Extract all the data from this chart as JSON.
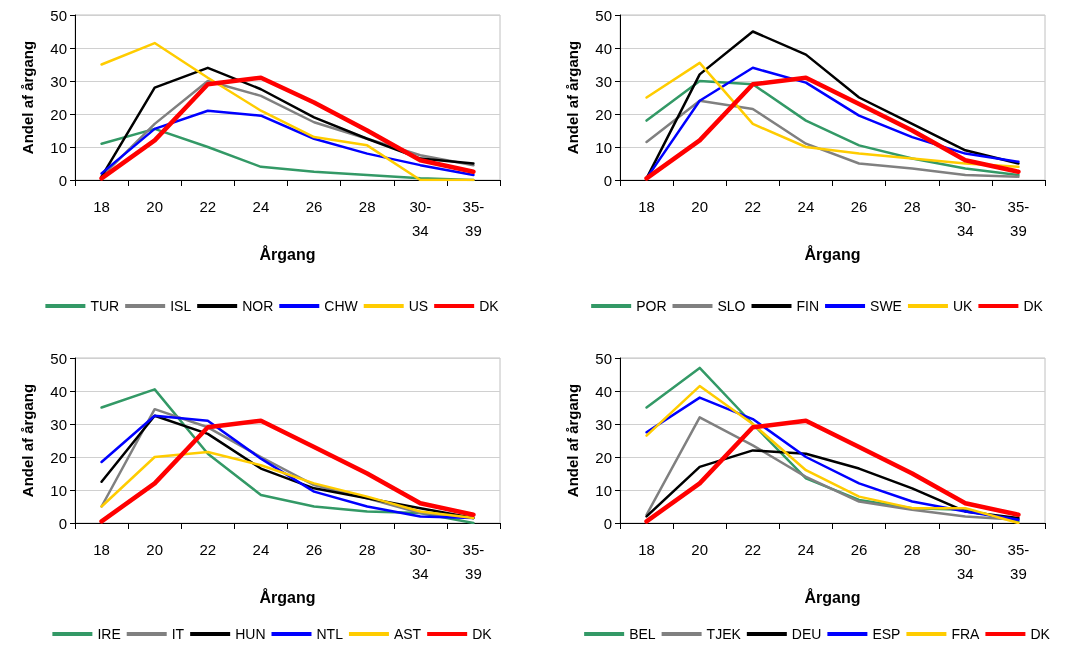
{
  "chart_data": [
    {
      "type": "line",
      "xlabel": "Årgang",
      "ylabel": "Andel af årgang",
      "categories": [
        "18",
        "20",
        "22",
        "24",
        "26",
        "28",
        "30-34",
        "35-39"
      ],
      "ylim": [
        0,
        50
      ],
      "yticks": [
        0,
        10,
        20,
        30,
        40,
        50
      ],
      "grid": "y",
      "legend": "bottom",
      "marker": "none",
      "line_style": "solid",
      "series": [
        {
          "name": "TUR",
          "color": "#339966",
          "values": [
            11,
            15.5,
            10,
            4,
            2.5,
            1.5,
            0.5,
            0
          ]
        },
        {
          "name": "ISL",
          "color": "#808080",
          "values": [
            1,
            17,
            30,
            25.5,
            17.5,
            12.5,
            7.5,
            4.5
          ]
        },
        {
          "name": "NOR",
          "color": "#000000",
          "values": [
            1,
            28,
            34,
            27.5,
            19,
            12.5,
            6.5,
            5
          ]
        },
        {
          "name": "CHW",
          "color": "#0000ff",
          "values": [
            2,
            15.5,
            21,
            19.5,
            12.5,
            8,
            4.5,
            1.5
          ]
        },
        {
          "name": "US",
          "color": "#ffcc00",
          "values": [
            35,
            41.5,
            31,
            21,
            13,
            10.5,
            0,
            0
          ]
        },
        {
          "name": "DK",
          "color": "#ff0000",
          "values": [
            0.5,
            12,
            29,
            31,
            23.5,
            15,
            6,
            2.5
          ]
        }
      ]
    },
    {
      "type": "line",
      "xlabel": "Årgang",
      "ylabel": "Andel af årgang",
      "categories": [
        "18",
        "20",
        "22",
        "24",
        "26",
        "28",
        "30-34",
        "35-39"
      ],
      "ylim": [
        0,
        50
      ],
      "yticks": [
        0,
        10,
        20,
        30,
        40,
        50
      ],
      "grid": "y",
      "legend": "bottom",
      "marker": "none",
      "line_style": "solid",
      "series": [
        {
          "name": "POR",
          "color": "#339966",
          "values": [
            18,
            30,
            29,
            18,
            10.5,
            6.5,
            3.5,
            1.5
          ]
        },
        {
          "name": "SLO",
          "color": "#808080",
          "values": [
            11.5,
            24,
            21.5,
            11,
            5,
            3.5,
            1.5,
            1
          ]
        },
        {
          "name": "FIN",
          "color": "#000000",
          "values": [
            0.5,
            32,
            45,
            38,
            25,
            17,
            9,
            5
          ]
        },
        {
          "name": "SWE",
          "color": "#0000ff",
          "values": [
            0.5,
            24,
            34,
            29.5,
            19.5,
            13,
            8,
            5.5
          ]
        },
        {
          "name": "UK",
          "color": "#ffcc00",
          "values": [
            25,
            35.5,
            17,
            10,
            8,
            6.5,
            5,
            4
          ]
        },
        {
          "name": "DK",
          "color": "#ff0000",
          "values": [
            0.5,
            12,
            29,
            31,
            23,
            15,
            6,
            2.5
          ]
        }
      ]
    },
    {
      "type": "line",
      "xlabel": "Årgang",
      "ylabel": "Andel af årgang",
      "categories": [
        "18",
        "20",
        "22",
        "24",
        "26",
        "28",
        "30-34",
        "35-39"
      ],
      "ylim": [
        0,
        50
      ],
      "yticks": [
        0,
        10,
        20,
        30,
        40,
        50
      ],
      "grid": "y",
      "legend": "bottom",
      "marker": "none",
      "line_style": "solid",
      "series": [
        {
          "name": "IRE",
          "color": "#339966",
          "values": [
            35,
            40.5,
            21,
            8.5,
            5,
            3.5,
            3,
            0
          ]
        },
        {
          "name": "IT",
          "color": "#808080",
          "values": [
            5,
            34.5,
            29,
            20,
            11.5,
            7.5,
            3,
            1.5
          ]
        },
        {
          "name": "HUN",
          "color": "#000000",
          "values": [
            12.5,
            32.5,
            27,
            16.5,
            10.5,
            7.5,
            4.5,
            1.5
          ]
        },
        {
          "name": "NTL",
          "color": "#0000ff",
          "values": [
            18.5,
            32.5,
            31,
            19.5,
            9.5,
            5,
            2,
            1.5
          ]
        },
        {
          "name": "AST",
          "color": "#ffcc00",
          "values": [
            5,
            20,
            21.5,
            17.5,
            12,
            8,
            3.5,
            1.5
          ]
        },
        {
          "name": "DK",
          "color": "#ff0000",
          "values": [
            0.5,
            12,
            29,
            31,
            23,
            15,
            6,
            2.5
          ]
        }
      ]
    },
    {
      "type": "line",
      "xlabel": "Årgang",
      "ylabel": "Andel af årgang",
      "categories": [
        "18",
        "20",
        "22",
        "24",
        "26",
        "28",
        "30-34",
        "35-39"
      ],
      "ylim": [
        0,
        50
      ],
      "yticks": [
        0,
        10,
        20,
        30,
        40,
        50
      ],
      "grid": "y",
      "legend": "bottom",
      "marker": "none",
      "line_style": "solid",
      "series": [
        {
          "name": "BEL",
          "color": "#339966",
          "values": [
            35,
            47,
            30,
            13.5,
            7,
            4.5,
            4,
            0.5
          ]
        },
        {
          "name": "TJEK",
          "color": "#808080",
          "values": [
            2.5,
            32,
            23.5,
            14,
            6.5,
            4,
            2,
            1
          ]
        },
        {
          "name": "DEU",
          "color": "#000000",
          "values": [
            2,
            17,
            22,
            21,
            16.5,
            10.5,
            3.5,
            1.5
          ]
        },
        {
          "name": "ESP",
          "color": "#0000ff",
          "values": [
            27.5,
            38,
            31.5,
            20,
            12,
            6.5,
            3.5,
            1
          ]
        },
        {
          "name": "FRA",
          "color": "#ffcc00",
          "values": [
            26.5,
            41.5,
            30,
            16,
            8,
            4.5,
            4.5,
            0
          ]
        },
        {
          "name": "DK",
          "color": "#ff0000",
          "values": [
            0.5,
            12,
            29,
            31,
            23,
            15,
            6,
            2.5
          ]
        }
      ]
    }
  ]
}
